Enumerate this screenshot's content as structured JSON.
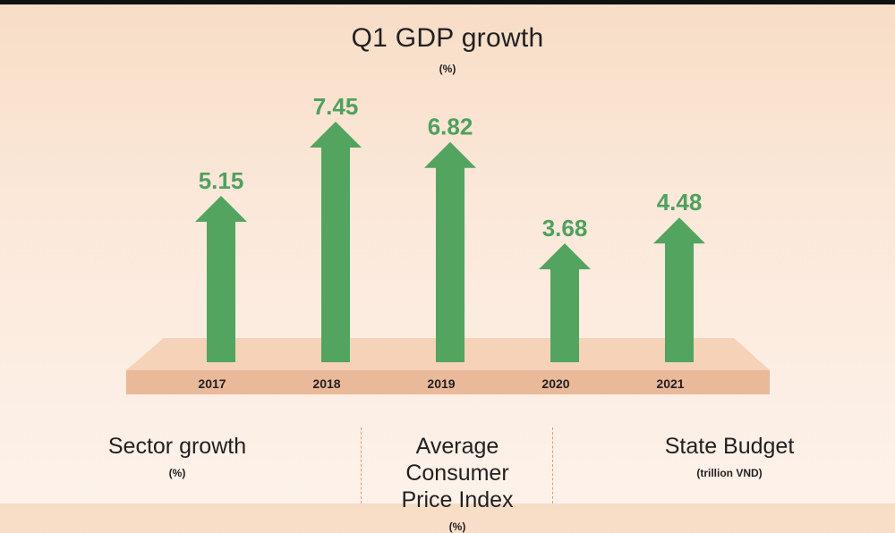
{
  "chart_data": {
    "type": "bar",
    "title": "Q1 GDP growth",
    "unit": "(%)",
    "categories": [
      "2017",
      "2018",
      "2019",
      "2020",
      "2021"
    ],
    "values": [
      5.15,
      7.45,
      6.82,
      3.68,
      4.48
    ],
    "value_labels": [
      "5.15",
      "7.45",
      "6.82",
      "3.68",
      "4.48"
    ],
    "bar_color": "#52a45f",
    "label_color": "#4fa05e",
    "platform_top_color": "#f5d2b8",
    "platform_front_color": "#e9b99a"
  },
  "sections": [
    {
      "title": "Sector growth",
      "unit": "(%)"
    },
    {
      "title_line1": "Average Consumer",
      "title_line2": "Price Index",
      "unit": "(%)"
    },
    {
      "title": "State Budget",
      "unit": "(trillion VND)"
    }
  ]
}
